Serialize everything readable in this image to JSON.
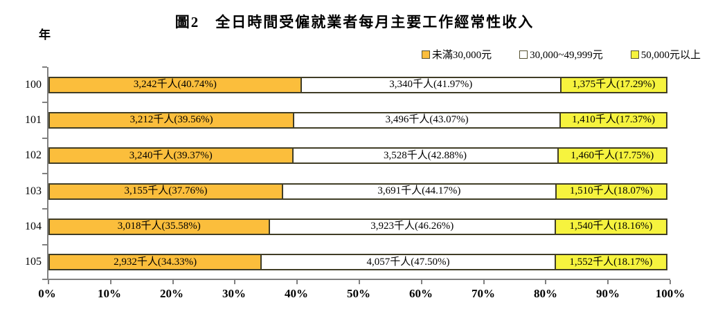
{
  "chart_data": {
    "type": "bar",
    "variant": "horizontal-stacked-100pct",
    "title": "圖2　全日時間受僱就業者每月主要工作經常性收入",
    "y_axis_unit": "年",
    "categories": [
      "100",
      "101",
      "102",
      "103",
      "104",
      "105"
    ],
    "series": [
      {
        "name": "未滿30,000元",
        "color": "#FBBE3C",
        "values": [
          40.74,
          39.56,
          39.37,
          37.76,
          35.58,
          34.33
        ],
        "counts_thousands": [
          3242,
          3212,
          3240,
          3155,
          3018,
          2932
        ],
        "labels": [
          "3,242千人(40.74%)",
          "3,212千人(39.56%)",
          "3,240千人(39.37%)",
          "3,155千人(37.76%)",
          "3,018千人(35.58%)",
          "2,932千人(34.33%)"
        ]
      },
      {
        "name": "30,000~49,999元",
        "color": "#FFFFFF",
        "values": [
          41.97,
          43.07,
          42.88,
          44.17,
          46.26,
          47.5
        ],
        "counts_thousands": [
          3340,
          3496,
          3528,
          3691,
          3923,
          4057
        ],
        "labels": [
          "3,340千人(41.97%)",
          "3,496千人(43.07%)",
          "3,528千人(42.88%)",
          "3,691千人(44.17%)",
          "3,923千人(46.26%)",
          "4,057千人(47.50%)"
        ]
      },
      {
        "name": "50,000元以上",
        "color": "#F6F33E",
        "values": [
          17.29,
          17.37,
          17.75,
          18.07,
          18.16,
          18.17
        ],
        "counts_thousands": [
          1375,
          1410,
          1460,
          1510,
          1540,
          1552
        ],
        "labels": [
          "1,375千人(17.29%)",
          "1,410千人(17.37%)",
          "1,460千人(17.75%)",
          "1,510千人(18.07%)",
          "1,540千人(18.16%)",
          "1,552千人(18.17%)"
        ]
      }
    ],
    "x_ticks": [
      "0%",
      "10%",
      "20%",
      "30%",
      "40%",
      "50%",
      "60%",
      "70%",
      "80%",
      "90%",
      "100%"
    ],
    "xlim": [
      0,
      100
    ],
    "legend_position": "top-right",
    "grid": false
  }
}
